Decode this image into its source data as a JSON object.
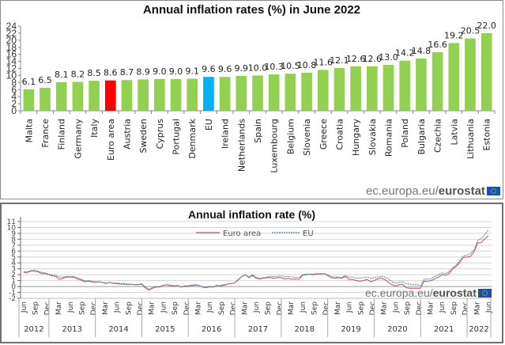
{
  "chart_data": [
    {
      "type": "bar",
      "title": "Annual inflation rates (%) in June 2022",
      "xlabel": "",
      "ylabel": "",
      "ylim": [
        0,
        24
      ],
      "yticks": [
        0,
        2,
        4,
        6,
        8,
        10,
        12,
        14,
        16,
        18,
        20,
        22,
        24
      ],
      "grid": false,
      "categories": [
        "Malta",
        "France",
        "Finland",
        "Germany",
        "Italy",
        "Euro area",
        "Austria",
        "Sweden",
        "Cyprus",
        "Portugal",
        "Denmark",
        "EU",
        "Ireland",
        "Netherlands",
        "Spain",
        "Luxembourg",
        "Belgium",
        "Slovenia",
        "Greece",
        "Croatia",
        "Hungary",
        "Slovakia",
        "Romania",
        "Poland",
        "Bulgaria",
        "Czechia",
        "Latvia",
        "Lithuania",
        "Estonia"
      ],
      "values": [
        6.1,
        6.5,
        8.1,
        8.2,
        8.5,
        8.6,
        8.7,
        8.9,
        9.0,
        9.0,
        9.1,
        9.6,
        9.6,
        9.9,
        10.0,
        10.3,
        10.5,
        10.8,
        11.6,
        12.1,
        12.6,
        12.6,
        13.0,
        14.2,
        14.8,
        16.6,
        19.2,
        20.5,
        22.0
      ],
      "labels": [
        "6.1",
        "6.5",
        "8.1",
        "8.2",
        "8.5",
        "8.6",
        "8.7",
        "8.9",
        "9.0",
        "9.0",
        "9.1",
        "9.6",
        "9.6",
        "9.9",
        "10.0",
        "10.3",
        "10.5",
        "10.8",
        "11.6",
        "12.1",
        "12.6",
        "12.6",
        "13.0",
        "14.2",
        "14.8",
        "16.6",
        "19.2",
        "20.5",
        "22.0"
      ],
      "colors": {
        "default": "#92d050",
        "Euro area": "#ff0000",
        "EU": "#00b0f0"
      }
    },
    {
      "type": "line",
      "title": "Annual inflation rate (%)",
      "xlabel": "",
      "ylabel": "",
      "ylim": [
        -2,
        11
      ],
      "yticks": [
        -2,
        -1,
        0,
        1,
        2,
        3,
        4,
        5,
        6,
        7,
        8,
        9,
        10,
        11
      ],
      "grid": true,
      "legend": "top-center",
      "x_month_ticks": [
        "Jun",
        "Sep",
        "Dec",
        "Mar",
        "Jun",
        "Sep",
        "Dec",
        "Mar",
        "Jun",
        "Sep",
        "Dec",
        "Mar",
        "Jun",
        "Sep",
        "Dec",
        "Mar",
        "Jun",
        "Sep",
        "Dec",
        "Mar",
        "Jun",
        "Sep",
        "Dec",
        "Mar",
        "Jun",
        "Sep",
        "Dec",
        "Mar",
        "Jun",
        "Sep",
        "Dec",
        "Mar",
        "Jun",
        "Sep",
        "Dec",
        "Mar",
        "Jun",
        "Sep",
        "Dec",
        "Mar",
        "Jun"
      ],
      "x_year_groups": [
        "2012",
        "2013",
        "2014",
        "2015",
        "2016",
        "2017",
        "2018",
        "2019",
        "2020",
        "2021",
        "2022"
      ],
      "x_start": "2012-06",
      "x_end": "2022-06",
      "series": [
        {
          "name": "Euro area",
          "color": "#c0504d",
          "style": "solid",
          "values": [
            2.4,
            2.4,
            2.6,
            2.6,
            2.5,
            2.2,
            2.2,
            2.0,
            1.8,
            1.7,
            1.2,
            1.4,
            1.6,
            1.6,
            1.6,
            1.3,
            1.1,
            0.8,
            0.9,
            0.8,
            0.7,
            0.8,
            0.7,
            0.5,
            0.7,
            0.5,
            0.5,
            0.4,
            0.4,
            0.3,
            0.4,
            0.3,
            0.3,
            0.4,
            -0.2,
            -0.6,
            -0.3,
            -0.1,
            -0.1,
            0.2,
            0.3,
            0.2,
            0.1,
            0.2,
            -0.1,
            0.1,
            0.1,
            0.2,
            0.3,
            0.2,
            -0.1,
            -0.2,
            0.0,
            -0.1,
            0.2,
            0.1,
            0.2,
            0.4,
            0.5,
            0.6,
            1.1,
            1.7,
            2.0,
            1.5,
            1.9,
            1.4,
            1.3,
            1.4,
            1.5,
            1.5,
            1.4,
            1.5,
            1.5,
            1.3,
            1.4,
            1.2,
            1.3,
            1.2,
            1.9,
            2.0,
            2.1,
            2.0,
            2.1,
            2.1,
            2.2,
            1.9,
            1.5,
            1.4,
            1.5,
            1.4,
            1.7,
            1.2,
            1.2,
            1.0,
            0.9,
            1.0,
            1.2,
            0.8,
            1.0,
            1.3,
            1.4,
            1.2,
            0.7,
            0.3,
            0.1,
            0.3,
            0.4,
            -0.2,
            -0.3,
            -0.3,
            -0.3,
            -0.3,
            0.9,
            0.9,
            1.0,
            1.3,
            1.6,
            2.0,
            1.9,
            2.2,
            3.0,
            3.4,
            4.1,
            4.9,
            5.0,
            5.1,
            5.9,
            7.4,
            7.4,
            8.1,
            8.6
          ]
        },
        {
          "name": "EU",
          "color": "#4f81bd",
          "style": "dashed",
          "values": [
            2.5,
            2.5,
            2.7,
            2.8,
            2.6,
            2.4,
            2.3,
            2.1,
            2.0,
            1.9,
            1.6,
            1.6,
            1.7,
            1.7,
            1.7,
            1.5,
            1.3,
            1.0,
            1.0,
            0.9,
            0.8,
            0.8,
            0.7,
            0.6,
            0.7,
            0.6,
            0.6,
            0.5,
            0.5,
            0.4,
            0.4,
            0.3,
            0.3,
            0.5,
            -0.1,
            -0.5,
            -0.2,
            -0.1,
            0.0,
            0.2,
            0.3,
            0.1,
            0.0,
            0.2,
            -0.1,
            0.0,
            0.0,
            0.1,
            0.2,
            0.2,
            -0.1,
            -0.2,
            -0.1,
            -0.1,
            0.1,
            0.2,
            0.3,
            0.4,
            0.5,
            0.6,
            1.2,
            1.7,
            2.0,
            1.6,
            2.0,
            1.6,
            1.4,
            1.5,
            1.6,
            1.7,
            1.7,
            1.7,
            1.8,
            1.7,
            1.7,
            1.6,
            1.6,
            1.5,
            2.0,
            2.1,
            2.1,
            2.1,
            2.2,
            2.2,
            2.2,
            2.0,
            1.7,
            1.6,
            1.6,
            1.5,
            1.9,
            1.6,
            1.6,
            1.4,
            1.4,
            1.5,
            1.6,
            1.4,
            1.5,
            1.6,
            1.7,
            1.6,
            1.3,
            0.8,
            0.6,
            0.7,
            0.8,
            0.5,
            0.4,
            0.3,
            0.3,
            0.2,
            1.2,
            1.3,
            1.3,
            1.7,
            2.0,
            2.3,
            2.2,
            2.5,
            3.2,
            3.6,
            4.4,
            5.2,
            5.3,
            5.6,
            6.2,
            7.8,
            8.1,
            8.8,
            9.6
          ]
        }
      ]
    }
  ],
  "watermark": {
    "prefix": "ec.europa.eu/",
    "brand": "eurostat"
  }
}
